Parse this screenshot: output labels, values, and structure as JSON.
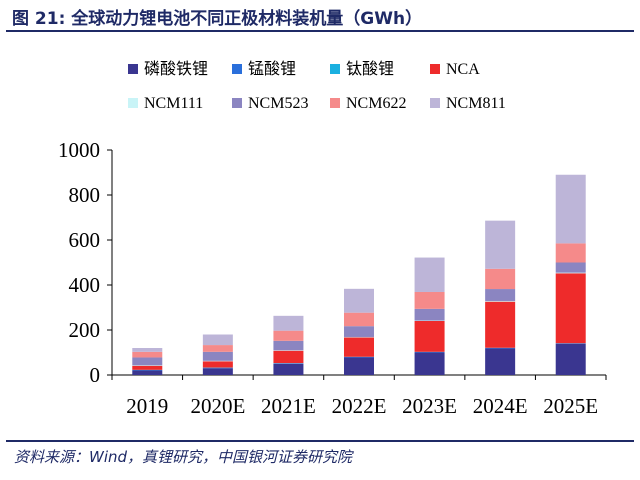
{
  "title": "图 21:  全球动力锂电池不同正极材料装机量（GWh）",
  "source": "资料来源：Wind，真锂研究，中国银河证券研究院",
  "chart_data": {
    "type": "bar",
    "stacked": true,
    "categories": [
      "2019",
      "2020E",
      "2021E",
      "2022E",
      "2023E",
      "2024E",
      "2025E"
    ],
    "ylim": [
      0,
      1000
    ],
    "yticks": [
      0,
      200,
      400,
      600,
      800,
      1000
    ],
    "legend_position": "top",
    "series": [
      {
        "name": "磷酸铁锂",
        "color": "#3a3690",
        "values": [
          20,
          30,
          50,
          78,
          100,
          118,
          138
        ]
      },
      {
        "name": "锰酸锂",
        "color": "#2a6fdb",
        "values": [
          2,
          2,
          2,
          2,
          2,
          2,
          2
        ]
      },
      {
        "name": "钛酸锂",
        "color": "#1ab0e0",
        "values": [
          1,
          1,
          1,
          1,
          1,
          1,
          1
        ]
      },
      {
        "name": "NCA",
        "color": "#ee2b2b",
        "values": [
          18,
          28,
          55,
          86,
          137,
          205,
          311
        ]
      },
      {
        "name": "NCM111",
        "color": "#c9f4f7",
        "values": [
          2,
          2,
          2,
          2,
          2,
          3,
          3
        ]
      },
      {
        "name": "NCM523",
        "color": "#8b85c1",
        "values": [
          35,
          40,
          42,
          48,
          52,
          53,
          45
        ]
      },
      {
        "name": "NCM622",
        "color": "#f58a8a",
        "values": [
          25,
          30,
          45,
          60,
          75,
          90,
          85
        ]
      },
      {
        "name": "NCM811",
        "color": "#bdb5d8",
        "values": [
          17,
          47,
          66,
          106,
          153,
          214,
          305
        ]
      }
    ]
  }
}
